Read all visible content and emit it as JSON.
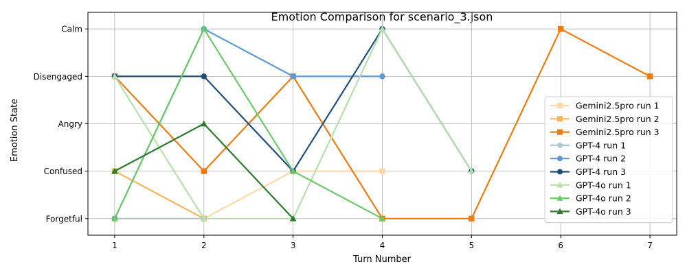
{
  "chart_data": {
    "type": "line",
    "title": "Emotion Comparison for scenario_3.json",
    "xlabel": "Turn Number",
    "ylabel": "Emotion State",
    "x_ticks": [
      1,
      2,
      3,
      4,
      5,
      6,
      7
    ],
    "xlim": [
      0.7,
      7.3
    ],
    "y_categories": [
      "Forgetful",
      "Confused",
      "Angry",
      "Disengaged",
      "Calm"
    ],
    "ylim": [
      -0.35,
      4.35
    ],
    "grid": true,
    "legend_position": "lower right",
    "series": [
      {
        "name": "Gemini2.5pro run 1",
        "color": "#fdd9a6",
        "marker": "square",
        "x": [
          1,
          2,
          3,
          4
        ],
        "y": [
          "Forgetful",
          "Forgetful",
          "Confused",
          "Confused"
        ]
      },
      {
        "name": "Gemini2.5pro run 2",
        "color": "#fbb45c",
        "marker": "square",
        "x": [
          1,
          2
        ],
        "y": [
          "Confused",
          "Forgetful"
        ]
      },
      {
        "name": "Gemini2.5pro run 3",
        "color": "#ee7b0f",
        "marker": "square",
        "x": [
          1,
          2,
          3,
          4,
          5,
          6,
          7
        ],
        "y": [
          "Disengaged",
          "Confused",
          "Disengaged",
          "Forgetful",
          "Forgetful",
          "Calm",
          "Disengaged"
        ]
      },
      {
        "name": "GPT-4 run 1",
        "color": "#aec7d0",
        "marker": "circle",
        "x": [
          1,
          2
        ],
        "y": [
          "Forgetful",
          "Forgetful"
        ]
      },
      {
        "name": "GPT-4 run 2",
        "color": "#5b9bd5",
        "marker": "circle",
        "x": [
          1,
          2,
          3,
          4
        ],
        "y": [
          "Forgetful",
          "Calm",
          "Disengaged",
          "Disengaged"
        ]
      },
      {
        "name": "GPT-4 run 3",
        "color": "#1f4e79",
        "marker": "circle",
        "x": [
          1,
          2,
          3,
          4,
          5
        ],
        "y": [
          "Disengaged",
          "Disengaged",
          "Confused",
          "Calm",
          "Confused"
        ]
      },
      {
        "name": "GPT-4o run 1",
        "color": "#b5e0ac",
        "marker": "triangle",
        "x": [
          1,
          2,
          3,
          4,
          5
        ],
        "y": [
          "Disengaged",
          "Forgetful",
          "Forgetful",
          "Calm",
          "Confused"
        ]
      },
      {
        "name": "GPT-4o run 2",
        "color": "#6cc96a",
        "marker": "triangle",
        "x": [
          1,
          2,
          3,
          4
        ],
        "y": [
          "Forgetful",
          "Calm",
          "Confused",
          "Forgetful"
        ]
      },
      {
        "name": "GPT-4o run 3",
        "color": "#2c7a2c",
        "marker": "triangle",
        "x": [
          1,
          2,
          3
        ],
        "y": [
          "Confused",
          "Angry",
          "Forgetful"
        ]
      }
    ]
  }
}
